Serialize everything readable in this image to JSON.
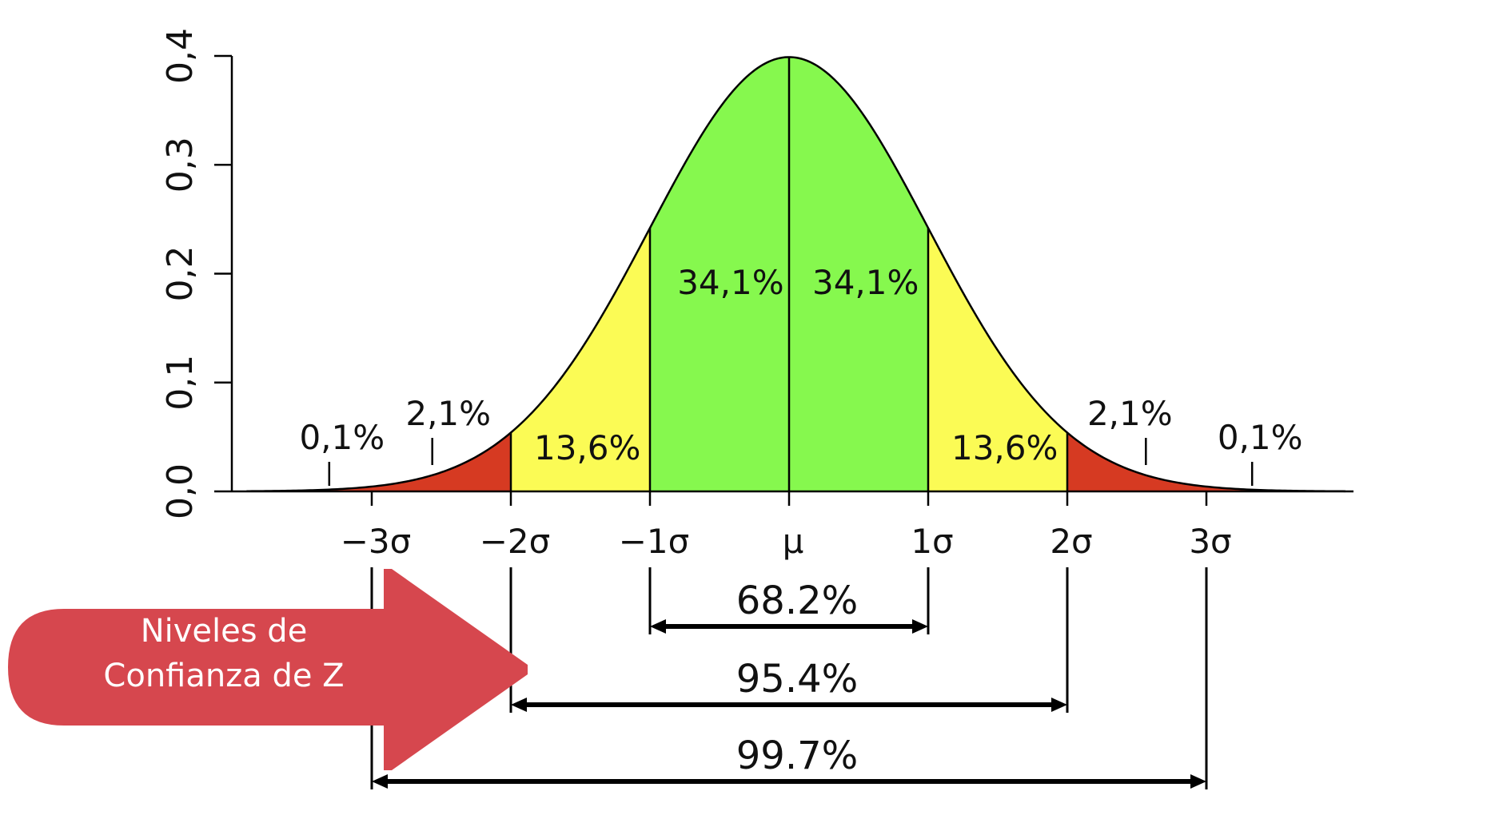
{
  "chart_data": {
    "type": "area",
    "title": "",
    "xlabel": "",
    "ylabel": "",
    "ylim": [
      0,
      0.4
    ],
    "xlim": [
      -3.9,
      4.0
    ],
    "yticks": [
      "0,0",
      "0,1",
      "0,2",
      "0,3",
      "0,4"
    ],
    "ytick_values": [
      0,
      0.1,
      0.2,
      0.3,
      0.4
    ],
    "xticks": [
      "−3σ",
      "−2σ",
      "−1σ",
      "μ",
      "1σ",
      "2σ",
      "3σ"
    ],
    "xtick_values": [
      -3,
      -2,
      -1,
      0,
      1,
      2,
      3
    ],
    "curve": "normal density, mean μ, standard deviation σ",
    "regions": [
      {
        "from": -3.9,
        "to": -2,
        "label": "2,1%",
        "color": "#d63a22"
      },
      {
        "from": -2,
        "to": -1,
        "label": "13,6%",
        "color": "#fbfb55"
      },
      {
        "from": -1,
        "to": 0,
        "label": "34,1%",
        "color": "#86f84e"
      },
      {
        "from": 0,
        "to": 1,
        "label": "34,1%",
        "color": "#86f84e"
      },
      {
        "from": 1,
        "to": 2,
        "label": "13,6%",
        "color": "#fbfb55"
      },
      {
        "from": 2,
        "to": 4.0,
        "label": "2,1%",
        "color": "#d63a22"
      }
    ],
    "tail_labels": [
      {
        "x": -3.3,
        "label": "0,1%"
      },
      {
        "x": 3.3,
        "label": "0,1%"
      }
    ],
    "intervals": [
      {
        "from": -1,
        "to": 1,
        "label": "68.2%"
      },
      {
        "from": -2,
        "to": 2,
        "label": "95.4%"
      },
      {
        "from": -3,
        "to": 3,
        "label": "99.7%"
      }
    ]
  },
  "callout": {
    "line1": "Niveles de",
    "line2": "Confianza de Z",
    "color": "#d6474e"
  }
}
